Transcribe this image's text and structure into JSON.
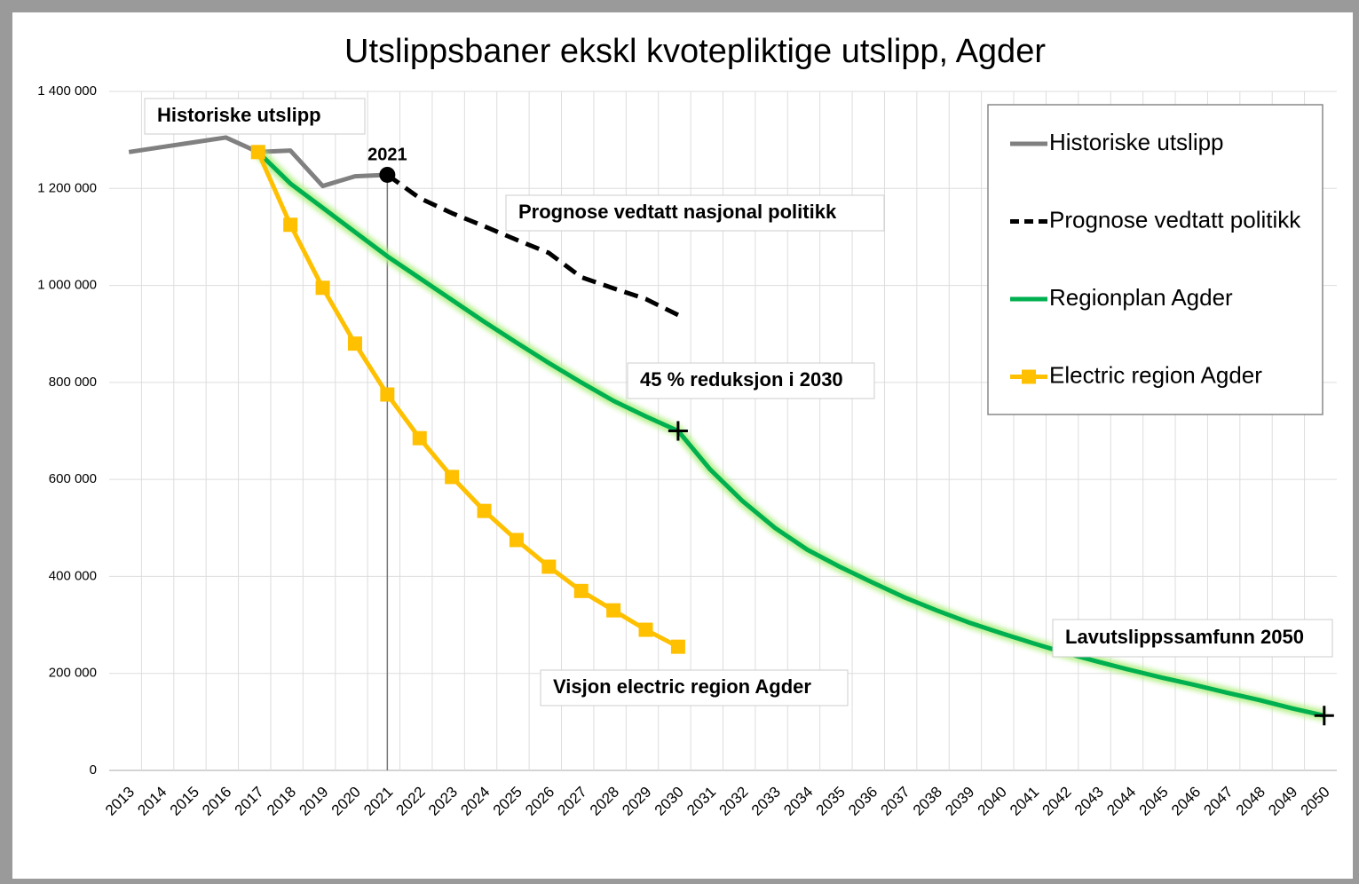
{
  "chart_data": {
    "type": "line",
    "title": "Utslippsbaner ekskl kvotepliktige utslipp, Agder",
    "categories": [
      "2013",
      "2014",
      "2015",
      "2016",
      "2017",
      "2018",
      "2019",
      "2020",
      "2021",
      "2022",
      "2023",
      "2024",
      "2025",
      "2026",
      "2027",
      "2028",
      "2029",
      "2030",
      "2031",
      "2032",
      "2033",
      "2034",
      "2035",
      "2036",
      "2037",
      "2038",
      "2039",
      "2040",
      "2041",
      "2042",
      "2043",
      "2044",
      "2045",
      "2046",
      "2047",
      "2048",
      "2049",
      "2050"
    ],
    "series": [
      {
        "name": "Historiske utslipp",
        "color": "#808080",
        "style": "solid",
        "values": [
          1275000,
          1285000,
          1295000,
          1305000,
          1275000,
          1278000,
          1205000,
          1225000,
          1228000,
          null,
          null,
          null,
          null,
          null,
          null,
          null,
          null,
          null,
          null,
          null,
          null,
          null,
          null,
          null,
          null,
          null,
          null,
          null,
          null,
          null,
          null,
          null,
          null,
          null,
          null,
          null,
          null,
          null
        ]
      },
      {
        "name": "Prognose vedtatt politikk",
        "color": "#000000",
        "style": "dashed",
        "values": [
          null,
          null,
          null,
          null,
          null,
          null,
          null,
          null,
          1228000,
          1180000,
          1149000,
          1122000,
          1094000,
          1067000,
          1017000,
          994000,
          972000,
          939000,
          null,
          null,
          null,
          null,
          null,
          null,
          null,
          null,
          null,
          null,
          null,
          null,
          null,
          null,
          null,
          null,
          null,
          null,
          null,
          null
        ]
      },
      {
        "name": "Regionplan Agder",
        "color": "#00b050",
        "style": "glow",
        "values": [
          null,
          null,
          null,
          null,
          1275000,
          1210000,
          1160000,
          1110000,
          1060000,
          1015000,
          970000,
          925000,
          882000,
          840000,
          800000,
          762000,
          730000,
          700000,
          620000,
          555000,
          500000,
          455000,
          420000,
          388000,
          357000,
          330000,
          305000,
          283000,
          262000,
          242000,
          224000,
          207000,
          191000,
          176000,
          160000,
          145000,
          128000,
          113000
        ]
      },
      {
        "name": "Electric region Agder",
        "color": "#ffc000",
        "style": "square",
        "values": [
          null,
          null,
          null,
          null,
          1275000,
          1125000,
          995000,
          880000,
          775000,
          685000,
          605000,
          535000,
          475000,
          420000,
          370000,
          330000,
          290000,
          255000,
          null,
          null,
          null,
          null,
          null,
          null,
          null,
          null,
          null,
          null,
          null,
          null,
          null,
          null,
          null,
          null,
          null,
          null,
          null,
          null
        ]
      }
    ],
    "annotations": [
      "Historiske utslipp",
      "2021",
      "Prognose vedtatt nasjonal politikk",
      "45 % reduksjon i 2030",
      "Visjon electric region Agder",
      "Lavutslippssamfunn 2050"
    ],
    "ylim": [
      0,
      1400000
    ],
    "yticks": [
      0,
      {
        "value": 200000,
        "label": "200 000"
      },
      {
        "value": 400000,
        "label": "400 000"
      },
      {
        "value": 600000,
        "label": "600 000"
      },
      {
        "value": 800000,
        "label": "800 000"
      },
      {
        "value": 1000000,
        "label": "1 000 000"
      },
      {
        "value": 1200000,
        "label": "1 200 000"
      },
      {
        "value": 1400000,
        "label": "1 400 000"
      }
    ],
    "grid": true,
    "legend": "top-right"
  }
}
